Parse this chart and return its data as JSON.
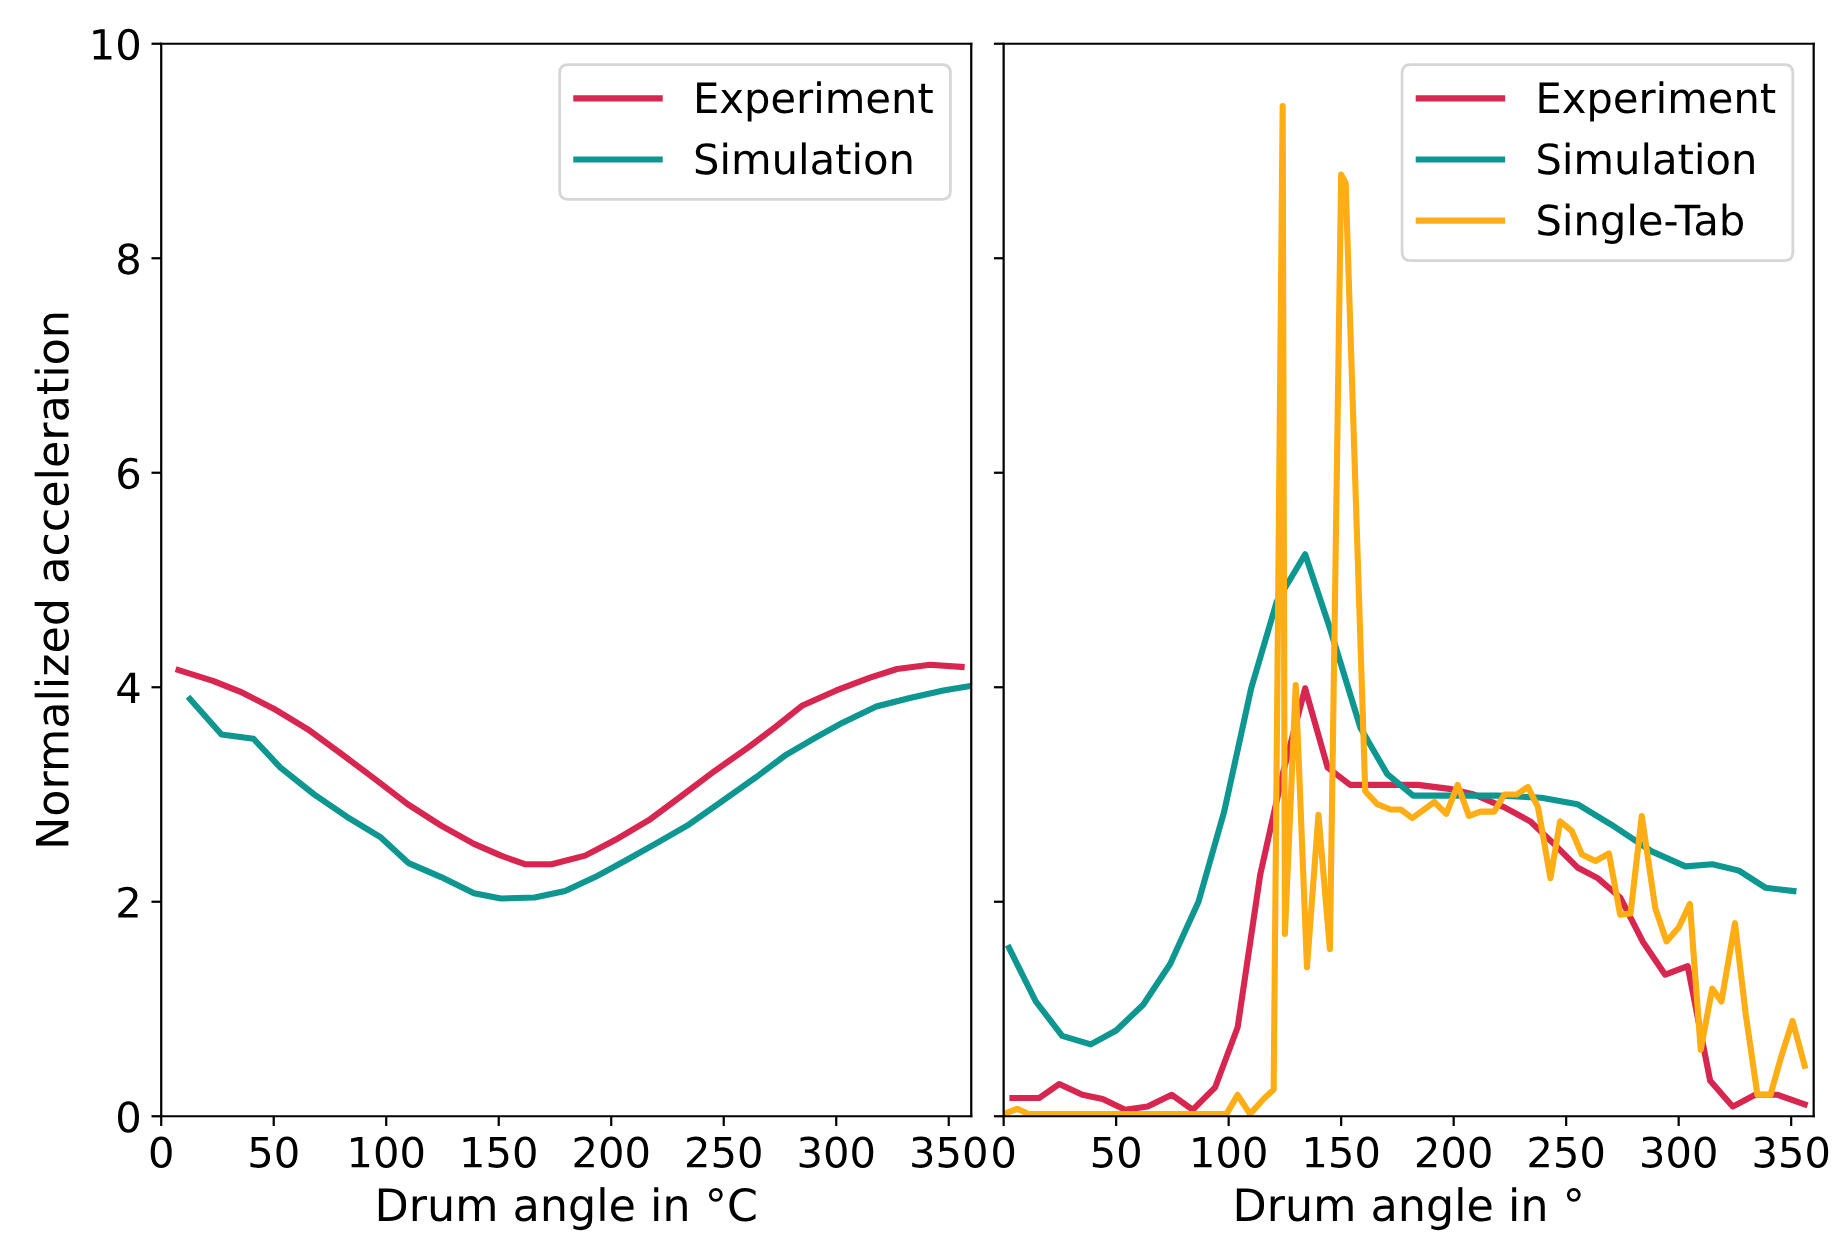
{
  "chart_data": [
    {
      "type": "line",
      "xlabel": "Drum angle in °C",
      "ylabel": "Normalized acceleration",
      "xlim": [
        0,
        360
      ],
      "ylim": [
        0,
        10
      ],
      "xticks": [
        0,
        50,
        100,
        150,
        200,
        250,
        300,
        350
      ],
      "yticks": [
        0,
        2,
        4,
        6,
        8,
        10
      ],
      "grid": false,
      "legend": "top right",
      "line_style": "solid",
      "series": [
        {
          "name": "Experiment",
          "color": "#d7264f",
          "x": [
            7.7,
            23,
            35,
            50,
            65,
            80,
            94.6,
            109.5,
            124.4,
            139,
            151,
            161.6,
            173.5,
            188.4,
            203,
            216.7,
            231.5,
            246,
            261,
            273,
            285,
            300,
            315,
            327,
            341.7,
            355.7
          ],
          "values": [
            4.16,
            4.06,
            3.96,
            3.8,
            3.61,
            3.38,
            3.15,
            2.91,
            2.71,
            2.54,
            2.43,
            2.35,
            2.35,
            2.43,
            2.59,
            2.76,
            2.99,
            3.22,
            3.44,
            3.63,
            3.83,
            3.97,
            4.09,
            4.17,
            4.21,
            4.19
          ]
        },
        {
          "name": "Simulation",
          "color": "#0e9690",
          "x": [
            12.8,
            26.8,
            41,
            53,
            68,
            82.7,
            97.6,
            110,
            124.4,
            139,
            151,
            166,
            179.5,
            192.8,
            206,
            219.6,
            234.5,
            249.4,
            264.3,
            277.7,
            290.8,
            302.8,
            317.8,
            332.7,
            347.6,
            359
          ],
          "values": [
            3.89,
            3.56,
            3.52,
            3.25,
            3.0,
            2.79,
            2.6,
            2.36,
            2.23,
            2.08,
            2.03,
            2.04,
            2.1,
            2.23,
            2.38,
            2.54,
            2.72,
            2.94,
            3.16,
            3.37,
            3.53,
            3.67,
            3.82,
            3.9,
            3.97,
            4.01
          ]
        }
      ]
    },
    {
      "type": "line",
      "xlabel": "Drum angle in °",
      "xlim": [
        0,
        360
      ],
      "ylim": [
        0,
        10
      ],
      "xticks": [
        0,
        50,
        100,
        150,
        200,
        250,
        300,
        350
      ],
      "yticks": [
        0,
        2,
        4,
        6,
        8,
        10
      ],
      "tick_labels": "x",
      "grid": false,
      "legend": "top right",
      "line_style": "solid",
      "series": [
        {
          "name": "Experiment",
          "color": "#d7264f",
          "x": [
            3.9,
            15.8,
            24.7,
            35,
            44,
            54,
            64,
            74.7,
            84,
            94,
            104,
            114,
            124,
            134,
            144,
            154,
            164,
            184,
            199,
            209,
            222.6,
            234,
            245,
            255,
            264,
            274,
            284,
            294,
            304,
            314,
            324,
            334,
            344,
            356
          ],
          "values": [
            0.17,
            0.17,
            0.3,
            0.2,
            0.16,
            0.06,
            0.09,
            0.2,
            0.06,
            0.27,
            0.83,
            2.25,
            3.19,
            3.99,
            3.25,
            3.09,
            3.09,
            3.09,
            3.05,
            3.0,
            2.88,
            2.75,
            2.53,
            2.32,
            2.22,
            2.04,
            1.63,
            1.32,
            1.4,
            0.33,
            0.09,
            0.2,
            0.2,
            0.11
          ]
        },
        {
          "name": "Simulation",
          "color": "#0e9690",
          "x": [
            2.4,
            14.3,
            26,
            38.7,
            50,
            62,
            74,
            86.6,
            98,
            110,
            121.4,
            134,
            145,
            158.6,
            170.5,
            182,
            196,
            219.6,
            239,
            255,
            270,
            288,
            303,
            315,
            326.8,
            338.7,
            351
          ],
          "values": [
            1.57,
            1.07,
            0.75,
            0.67,
            0.8,
            1.04,
            1.42,
            2.0,
            2.84,
            3.99,
            4.8,
            5.24,
            4.55,
            3.62,
            3.19,
            2.99,
            2.99,
            2.99,
            2.97,
            2.91,
            2.72,
            2.47,
            2.33,
            2.35,
            2.29,
            2.13,
            2.1
          ]
        },
        {
          "name": "Single-Tab",
          "color": "#ffad14",
          "x": [
            0,
            6,
            11,
            99,
            104,
            109.5,
            115,
            120,
            124,
            125,
            129.8,
            134.8,
            139.9,
            145,
            150,
            152,
            160.7,
            166,
            172,
            176.5,
            181.6,
            191.4,
            196.7,
            201.8,
            206.8,
            212,
            218,
            222.6,
            228,
            233,
            237.5,
            243,
            247.3,
            252.5,
            257,
            263,
            269,
            274,
            278.6,
            283.6,
            289.6,
            294.6,
            300,
            305,
            309.8,
            314.9,
            319,
            325,
            329.8,
            335,
            340.8,
            345.5,
            350.6,
            356
          ],
          "values": [
            0.02,
            0.07,
            0.02,
            0.02,
            0.2,
            0.02,
            0.15,
            0.25,
            9.42,
            1.7,
            4.02,
            1.39,
            2.81,
            1.56,
            8.78,
            8.7,
            3.03,
            2.91,
            2.86,
            2.86,
            2.78,
            2.93,
            2.82,
            3.09,
            2.8,
            2.84,
            2.84,
            3.0,
            3.0,
            3.07,
            2.88,
            2.22,
            2.75,
            2.66,
            2.44,
            2.38,
            2.45,
            1.88,
            1.89,
            2.8,
            1.94,
            1.63,
            1.76,
            1.98,
            0.62,
            1.19,
            1.07,
            1.8,
            0.95,
            0.2,
            0.2,
            0.55,
            0.89,
            0.47
          ]
        }
      ]
    }
  ]
}
